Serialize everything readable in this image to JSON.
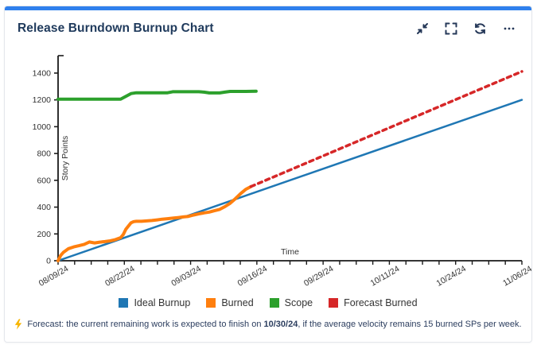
{
  "header": {
    "title": "Release Burndown Burnup Chart",
    "actions": [
      {
        "id": "collapse",
        "icon": "compress-icon"
      },
      {
        "id": "fullscreen",
        "icon": "fullscreen-icon"
      },
      {
        "id": "refresh",
        "icon": "refresh-icon"
      },
      {
        "id": "more",
        "icon": "ellipsis-icon"
      }
    ]
  },
  "colors": {
    "accent_bar": "#2f80ed",
    "title": "#1f3a5c",
    "header_icons": "#253858",
    "footer_text": "#2c3e5f",
    "ideal_burnup": "#1f77b4",
    "burned": "#ff7f0e",
    "scope": "#2ca02c",
    "forecast_burned": "#d62728",
    "lightning": "#f7b500"
  },
  "chart_data": {
    "type": "line",
    "xlabel": "Time",
    "ylabel": "Story Points",
    "x_axis_unit": "date",
    "x_tick_labels": [
      "08/09/24",
      "08/22/24",
      "09/03/24",
      "09/16/24",
      "09/29/24",
      "10/11/24",
      "10/24/24",
      "11/06/24"
    ],
    "minor_ticks_between_labels": 3,
    "x_range": [
      0,
      89
    ],
    "ylim": [
      0,
      1530
    ],
    "y_ticks": [
      0,
      200,
      400,
      600,
      800,
      1000,
      1200,
      1400
    ],
    "grid": false,
    "legend_position": "bottom",
    "series": [
      {
        "name": "Ideal Burnup",
        "color": "#1f77b4",
        "style": "solid",
        "width": 2.5,
        "points": [
          [
            0,
            0
          ],
          [
            89,
            1200
          ]
        ]
      },
      {
        "name": "Burned",
        "color": "#ff7f0e",
        "style": "solid",
        "width": 4,
        "points": [
          [
            0,
            0
          ],
          [
            0.5,
            40
          ],
          [
            1,
            62
          ],
          [
            2,
            90
          ],
          [
            3,
            103
          ],
          [
            4,
            112
          ],
          [
            5,
            122
          ],
          [
            6,
            140
          ],
          [
            7,
            133
          ],
          [
            8,
            139
          ],
          [
            9,
            143
          ],
          [
            10,
            148
          ],
          [
            11,
            158
          ],
          [
            12,
            172
          ],
          [
            12.5,
            195
          ],
          [
            13,
            235
          ],
          [
            14,
            283
          ],
          [
            14.5,
            292
          ],
          [
            15,
            294
          ],
          [
            16,
            294
          ],
          [
            17,
            297
          ],
          [
            18,
            300
          ],
          [
            19,
            305
          ],
          [
            20,
            310
          ],
          [
            21,
            314
          ],
          [
            22,
            318
          ],
          [
            23,
            322
          ],
          [
            24,
            327
          ],
          [
            25,
            331
          ],
          [
            26,
            341
          ],
          [
            27,
            349
          ],
          [
            28,
            357
          ],
          [
            29,
            363
          ],
          [
            30,
            373
          ],
          [
            31,
            383
          ],
          [
            32,
            403
          ],
          [
            33,
            428
          ],
          [
            34,
            462
          ],
          [
            35,
            500
          ],
          [
            36,
            532
          ],
          [
            37,
            553
          ]
        ]
      },
      {
        "name": "Scope",
        "color": "#2ca02c",
        "style": "solid",
        "width": 4,
        "points": [
          [
            0,
            1205
          ],
          [
            12,
            1205
          ],
          [
            14,
            1247
          ],
          [
            15,
            1253
          ],
          [
            21,
            1253
          ],
          [
            22,
            1261
          ],
          [
            27,
            1261
          ],
          [
            28,
            1258
          ],
          [
            29,
            1252
          ],
          [
            31,
            1252
          ],
          [
            32,
            1258
          ],
          [
            33,
            1263
          ],
          [
            36,
            1263
          ],
          [
            38,
            1265
          ]
        ]
      },
      {
        "name": "Forecast Burned",
        "color": "#d62728",
        "style": "dashed",
        "width": 3.5,
        "points": [
          [
            37,
            553
          ],
          [
            89,
            1412
          ]
        ]
      }
    ]
  },
  "footer": {
    "icon": "lightning-icon",
    "text_before": "Forecast: the current remaining work is expected to finish on ",
    "date": "10/30/24",
    "text_after": ", if the average velocity remains 15 burned SPs per week."
  }
}
